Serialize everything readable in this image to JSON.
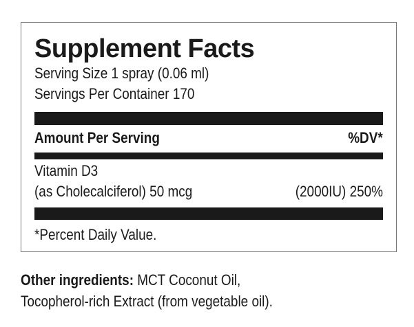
{
  "label": {
    "title": "Supplement Facts",
    "serving_size": "Serving Size 1 spray (0.06 ml)",
    "servings_per_container": "Servings Per Container 170",
    "amount_header": "Amount Per Serving",
    "dv_header": "%DV*",
    "nutrient_name": "Vitamin D3",
    "nutrient_detail": "(as Cholecalciferol) 50 mcg",
    "nutrient_dv": "(2000IU) 250%",
    "footnote": "*Percent Daily Value."
  },
  "other_ingredients": {
    "label": "Other ingredients:",
    "line1": "MCT Coconut Oil,",
    "line2": "Tocopherol-rich Extract (from vegetable oil)."
  }
}
